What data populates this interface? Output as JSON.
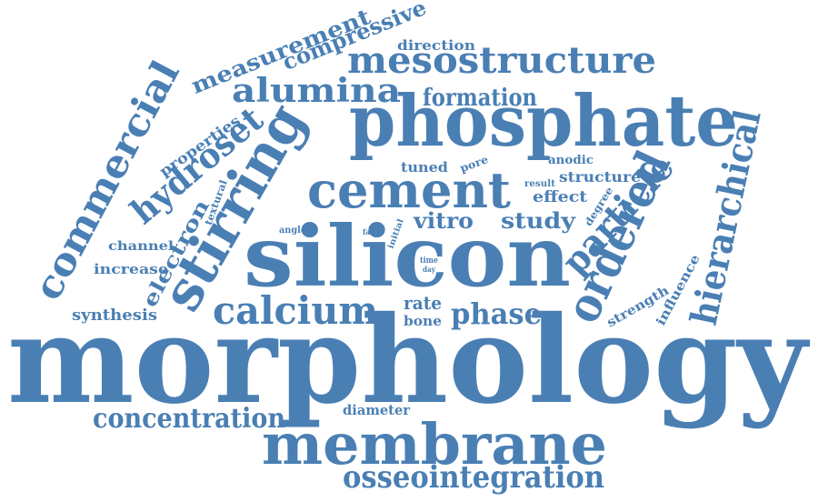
{
  "color": "#4a7fb4",
  "words": [
    {
      "text": "morphology"
    },
    {
      "text": "silicon"
    },
    {
      "text": "phosphate"
    },
    {
      "text": "membrane"
    },
    {
      "text": "stirring"
    },
    {
      "text": "cement"
    },
    {
      "text": "ordered"
    },
    {
      "text": "hierarchical"
    },
    {
      "text": "commercial"
    },
    {
      "text": "mesostructure"
    },
    {
      "text": "calcium"
    },
    {
      "text": "particle"
    },
    {
      "text": "hydroset"
    },
    {
      "text": "osseointegration"
    },
    {
      "text": "concentration"
    },
    {
      "text": "alumina"
    },
    {
      "text": "measurement"
    },
    {
      "text": "compressive"
    },
    {
      "text": "phase"
    },
    {
      "text": "formation"
    },
    {
      "text": "electron"
    },
    {
      "text": "vitro"
    },
    {
      "text": "study"
    },
    {
      "text": "rate"
    },
    {
      "text": "synthesis"
    },
    {
      "text": "properties"
    },
    {
      "text": "increase"
    },
    {
      "text": "channel"
    },
    {
      "text": "direction"
    },
    {
      "text": "structure"
    },
    {
      "text": "effect"
    },
    {
      "text": "tuned"
    },
    {
      "text": "pore"
    },
    {
      "text": "anodic"
    },
    {
      "text": "result"
    },
    {
      "text": "degree"
    },
    {
      "text": "bone"
    },
    {
      "text": "strength"
    },
    {
      "text": "influence"
    },
    {
      "text": "diameter"
    },
    {
      "text": "textural"
    },
    {
      "text": "angle"
    },
    {
      "text": "fast"
    },
    {
      "text": "initial"
    },
    {
      "text": "time"
    },
    {
      "text": "day"
    }
  ]
}
